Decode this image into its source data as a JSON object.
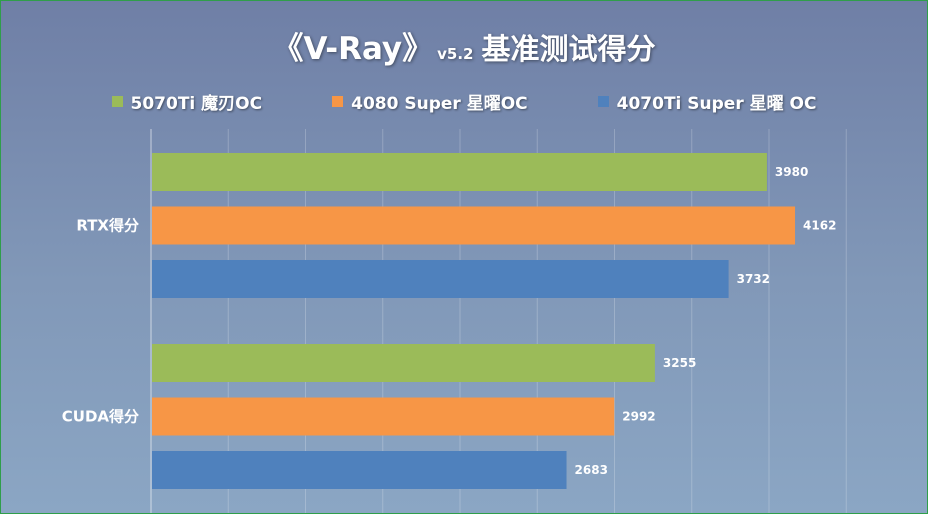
{
  "title": {
    "main": "《V-Ray》",
    "version": "v5.2",
    "rest": "基准测试得分"
  },
  "legend": [
    {
      "name": "5070Ti 魔刃OC",
      "color": "#9bbb59"
    },
    {
      "name": "4080 Super 星曜OC",
      "color": "#f79646"
    },
    {
      "name": "4070Ti Super 星曜 OC",
      "color": "#4f81bd"
    }
  ],
  "chart_data": {
    "type": "bar",
    "orientation": "horizontal",
    "title": "《V-Ray》v5.2 基准测试得分",
    "categories": [
      "RTX得分",
      "CUDA得分"
    ],
    "series": [
      {
        "name": "5070Ti 魔刃OC",
        "color": "#9bbb59",
        "values": [
          3980,
          3255
        ]
      },
      {
        "name": "4080 Super 星曜OC",
        "color": "#f79646",
        "values": [
          4162,
          2992
        ]
      },
      {
        "name": "4070Ti Super 星曜 OC",
        "color": "#4f81bd",
        "values": [
          3732,
          2683
        ]
      }
    ],
    "xlim": [
      0,
      4500
    ],
    "grid": true,
    "legend_position": "top",
    "data_labels": true
  }
}
